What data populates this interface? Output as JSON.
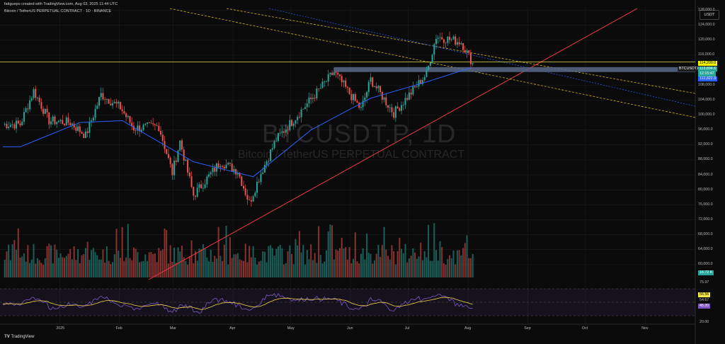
{
  "header": {
    "author_line": "fatiguepo created with TradingView.com, Aug 03, 2025 11:44 UTC",
    "symbol_line": "Bitcoin / TetherUS PERPETUAL CONTRACT · 1D · BINANCE"
  },
  "watermark": {
    "symbol": "BTCUSDT.P, 1D",
    "name": "Bitcoin / TetherUS PERPETUAL CONTRACT"
  },
  "currency_button": "USDT",
  "branding": "TradingView",
  "price_axis": [
    "128,000.0",
    "124,000.0",
    "120,000.0",
    "116,000.0",
    "108,000.0",
    "104,000.0",
    "100,000.0",
    "96,000.0",
    "92,000.0",
    "88,000.0",
    "84,000.0",
    "80,000.0",
    "76,000.0",
    "72,000.0",
    "68,000.0",
    "64,000.0",
    "60,000.0"
  ],
  "price_tags": {
    "level": {
      "text": "114,200.0",
      "bg": "#f5f500",
      "fg": "#000000"
    },
    "symbol": {
      "text": "BTCUSDT.P",
      "bg": "#1d1d1d",
      "fg": "#ffffff"
    },
    "last": {
      "text": "113,894.6",
      "bg": "#26a69a",
      "fg": "#ffffff"
    },
    "countdown": {
      "text": "12:15:47",
      "bg": "#26a69a",
      "fg": "#ffffff"
    },
    "ma": {
      "text": "112,822.9",
      "bg": "#2962ff",
      "fg": "#ffffff"
    },
    "volume": {
      "text": "16.72 K",
      "bg": "#26a69a",
      "fg": "#ffffff"
    }
  },
  "rsi_axis": {
    "upper": "75.97",
    "ma_value": {
      "text": "56.56",
      "bg": "#f5e94a",
      "fg": "#000000"
    },
    "mid": "54.67",
    "rsi_value": {
      "text": "45.20",
      "bg": "#7e57c2",
      "fg": "#ffffff"
    },
    "lower": "20.00"
  },
  "time_axis": [
    "2025",
    "Feb",
    "Mar",
    "Apr",
    "May",
    "Jun",
    "Jul",
    "Aug",
    "Sep",
    "Oct",
    "Nov"
  ],
  "colors": {
    "up": "#26a69a",
    "down": "#ef5350",
    "ma": "#2962ff",
    "trend": "#f23645",
    "channel": "#d4b51c",
    "rsi": "#7e57c2",
    "rsi_ma": "#f5d34a",
    "zone": "#5a6a8a"
  },
  "chart_data": {
    "type": "candlestick",
    "title": "Bitcoin / TetherUS PERPETUAL CONTRACT · 1D · BINANCE",
    "symbol": "BTCUSDT.P",
    "timeframe": "1D",
    "ylim": [
      56000,
      130000
    ],
    "series": [
      {
        "name": "Price (approx. daily close)",
        "anchors": [
          {
            "t": "2024-12-10",
            "v": 97500
          },
          {
            "t": "2024-12-17",
            "v": 106500
          },
          {
            "t": "2024-12-25",
            "v": 98500
          },
          {
            "t": "2025-01-05",
            "v": 98000
          },
          {
            "t": "2025-01-13",
            "v": 94500
          },
          {
            "t": "2025-01-21",
            "v": 105500
          },
          {
            "t": "2025-01-31",
            "v": 102000
          },
          {
            "t": "2025-02-07",
            "v": 96500
          },
          {
            "t": "2025-02-20",
            "v": 97000
          },
          {
            "t": "2025-02-27",
            "v": 84500
          },
          {
            "t": "2025-03-03",
            "v": 93000
          },
          {
            "t": "2025-03-10",
            "v": 78500
          },
          {
            "t": "2025-03-24",
            "v": 87500
          },
          {
            "t": "2025-04-02",
            "v": 85000
          },
          {
            "t": "2025-04-08",
            "v": 76500
          },
          {
            "t": "2025-04-14",
            "v": 84500
          },
          {
            "t": "2025-04-22",
            "v": 93500
          },
          {
            "t": "2025-05-08",
            "v": 103000
          },
          {
            "t": "2025-05-22",
            "v": 111500
          },
          {
            "t": "2025-06-05",
            "v": 101500
          },
          {
            "t": "2025-06-10",
            "v": 109500
          },
          {
            "t": "2025-06-22",
            "v": 100500
          },
          {
            "t": "2025-07-01",
            "v": 106000
          },
          {
            "t": "2025-07-09",
            "v": 111000
          },
          {
            "t": "2025-07-14",
            "v": 121000
          },
          {
            "t": "2025-07-27",
            "v": 119500
          },
          {
            "t": "2025-08-02",
            "v": 113894.6
          }
        ]
      },
      {
        "name": "Moving average (approx.)",
        "anchors": [
          {
            "t": "2024-12-10",
            "v": 91500
          },
          {
            "t": "2025-01-10",
            "v": 98000
          },
          {
            "t": "2025-02-01",
            "v": 98500
          },
          {
            "t": "2025-03-10",
            "v": 87500
          },
          {
            "t": "2025-04-10",
            "v": 83500
          },
          {
            "t": "2025-05-10",
            "v": 96000
          },
          {
            "t": "2025-06-10",
            "v": 104500
          },
          {
            "t": "2025-07-10",
            "v": 109000
          },
          {
            "t": "2025-08-02",
            "v": 112822.9
          }
        ]
      }
    ],
    "levels": {
      "horizontal": 114200,
      "zone": [
        111500,
        112800
      ]
    },
    "indicators": {
      "rsi_last": 45.2,
      "rsi_ma": 56.56,
      "volume_last": "16.72 K"
    }
  }
}
